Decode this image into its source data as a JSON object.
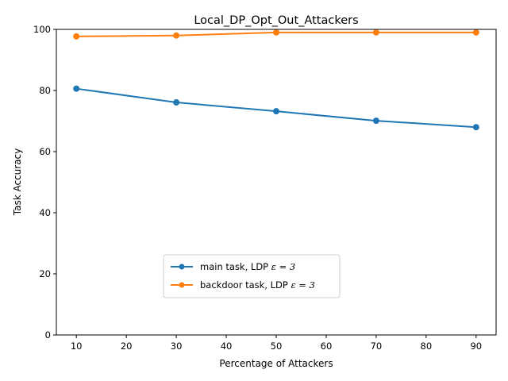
{
  "chart_data": {
    "type": "line",
    "title": "Local_DP_Opt_Out_Attackers",
    "xlabel": "Percentage of Attackers",
    "ylabel": "Task Accuracy",
    "xlim": [
      6,
      94
    ],
    "ylim": [
      0,
      100
    ],
    "xticks": [
      10,
      20,
      30,
      40,
      50,
      60,
      70,
      80,
      90
    ],
    "yticks": [
      0,
      20,
      40,
      60,
      80,
      100
    ],
    "x": [
      10,
      30,
      50,
      70,
      90
    ],
    "grid": false,
    "legend_position": "lower-center",
    "series": [
      {
        "name_prefix": "main task, LDP ",
        "name_math": "ε = 3",
        "color": "#1f77b4",
        "values": [
          80.6,
          76.1,
          73.2,
          70.1,
          68.0
        ]
      },
      {
        "name_prefix": "backdoor task, LDP ",
        "name_math": "ε = 3",
        "color": "#ff7f0e",
        "values": [
          97.7,
          98.0,
          99.0,
          99.0,
          99.0
        ]
      }
    ]
  }
}
